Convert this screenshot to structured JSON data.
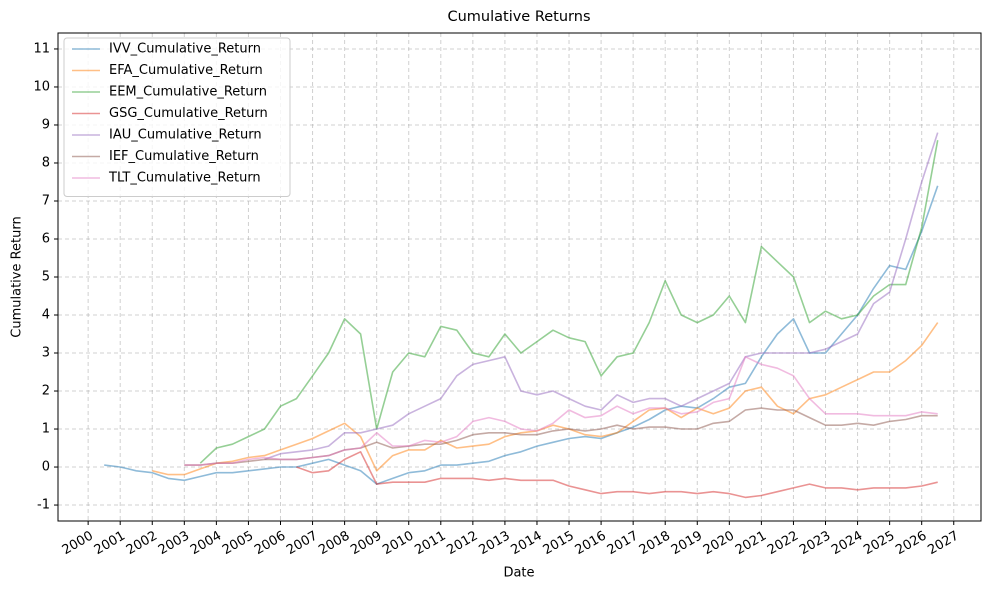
{
  "chart_data": {
    "type": "line",
    "title": "Cumulative Returns",
    "x_label": "Date",
    "y_label": "Cumulative Return",
    "x": [
      2000.5,
      2001,
      2001.5,
      2002,
      2002.5,
      2003,
      2003.5,
      2004,
      2004.5,
      2005,
      2005.5,
      2006,
      2006.5,
      2007,
      2007.5,
      2008,
      2008.5,
      2009,
      2009.5,
      2010,
      2010.5,
      2011,
      2011.5,
      2012,
      2012.5,
      2013,
      2013.5,
      2014,
      2014.5,
      2015,
      2015.5,
      2016,
      2016.5,
      2017,
      2017.5,
      2018,
      2018.5,
      2019,
      2019.5,
      2020,
      2020.5,
      2021,
      2021.5,
      2022,
      2022.5,
      2023,
      2023.5,
      2024,
      2024.5,
      2025,
      2025.5,
      2026,
      2026.5
    ],
    "xlim": [
      1999.06,
      2027.85
    ],
    "xticks": [
      2000,
      2001,
      2002,
      2003,
      2004,
      2005,
      2006,
      2007,
      2008,
      2009,
      2010,
      2011,
      2012,
      2013,
      2014,
      2015,
      2016,
      2017,
      2018,
      2019,
      2020,
      2021,
      2022,
      2023,
      2024,
      2025,
      2026,
      2027
    ],
    "ylim": [
      -1.42,
      11.42
    ],
    "yticks": [
      -1,
      0,
      1,
      2,
      3,
      4,
      5,
      6,
      7,
      8,
      9,
      10,
      11
    ],
    "grid": true,
    "legend": "upper-left",
    "series": [
      {
        "name": "IVV_Cumulative_Return",
        "color": "#1f77b4",
        "values": [
          0.05,
          0.0,
          -0.1,
          -0.15,
          -0.3,
          -0.35,
          -0.25,
          -0.15,
          -0.15,
          -0.1,
          -0.05,
          0.0,
          0.0,
          0.1,
          0.2,
          0.05,
          -0.1,
          -0.45,
          -0.3,
          -0.15,
          -0.1,
          0.05,
          0.05,
          0.1,
          0.15,
          0.3,
          0.4,
          0.55,
          0.65,
          0.75,
          0.8,
          0.75,
          0.9,
          1.05,
          1.25,
          1.5,
          1.6,
          1.55,
          1.8,
          2.1,
          2.2,
          2.9,
          3.5,
          3.9,
          3.0,
          3.0,
          3.5,
          4.0,
          4.7,
          5.3,
          5.2,
          6.2,
          7.4
        ]
      },
      {
        "name": "EFA_Cumulative_Return",
        "color": "#ff7f0e",
        "values": [
          null,
          null,
          null,
          -0.1,
          -0.2,
          -0.2,
          -0.05,
          0.1,
          0.15,
          0.25,
          0.3,
          0.45,
          0.6,
          0.75,
          0.95,
          1.15,
          0.8,
          -0.1,
          0.3,
          0.45,
          0.45,
          0.7,
          0.5,
          0.55,
          0.6,
          0.8,
          0.9,
          0.95,
          1.1,
          1.0,
          0.85,
          0.8,
          0.9,
          1.2,
          1.5,
          1.55,
          1.3,
          1.55,
          1.4,
          1.55,
          2.0,
          2.1,
          1.6,
          1.4,
          1.8,
          1.9,
          2.1,
          2.3,
          2.5,
          2.5,
          2.8,
          3.2,
          3.8
        ]
      },
      {
        "name": "EEM_Cumulative_Return",
        "color": "#2ca02c",
        "values": [
          null,
          null,
          null,
          null,
          null,
          null,
          0.1,
          0.5,
          0.6,
          0.8,
          1.0,
          1.6,
          1.8,
          2.4,
          3.0,
          3.9,
          3.5,
          1.0,
          2.5,
          3.0,
          2.9,
          3.7,
          3.6,
          3.0,
          2.9,
          3.5,
          3.0,
          3.3,
          3.6,
          3.4,
          3.3,
          2.4,
          2.9,
          3.0,
          3.8,
          4.9,
          4.0,
          3.8,
          4.0,
          4.5,
          3.8,
          5.8,
          5.4,
          5.0,
          3.8,
          4.1,
          3.9,
          4.0,
          4.5,
          4.8,
          4.8,
          6.3,
          8.6
        ]
      },
      {
        "name": "GSG_Cumulative_Return",
        "color": "#d62728",
        "values": [
          null,
          null,
          null,
          null,
          null,
          null,
          null,
          null,
          null,
          null,
          null,
          null,
          0.0,
          -0.15,
          -0.1,
          0.2,
          0.4,
          -0.45,
          -0.4,
          -0.4,
          -0.4,
          -0.3,
          -0.3,
          -0.3,
          -0.35,
          -0.3,
          -0.35,
          -0.35,
          -0.35,
          -0.5,
          -0.6,
          -0.7,
          -0.65,
          -0.65,
          -0.7,
          -0.65,
          -0.65,
          -0.7,
          -0.65,
          -0.7,
          -0.8,
          -0.75,
          -0.65,
          -0.55,
          -0.45,
          -0.55,
          -0.55,
          -0.6,
          -0.55,
          -0.55,
          -0.55,
          -0.5,
          -0.4
        ]
      },
      {
        "name": "IAU_Cumulative_Return",
        "color": "#9467bd",
        "values": [
          null,
          null,
          null,
          null,
          null,
          null,
          null,
          null,
          null,
          null,
          0.2,
          0.35,
          0.4,
          0.45,
          0.55,
          0.9,
          0.9,
          1.0,
          1.1,
          1.4,
          1.6,
          1.8,
          2.4,
          2.7,
          2.8,
          2.9,
          2.0,
          1.9,
          2.0,
          1.8,
          1.6,
          1.5,
          1.9,
          1.7,
          1.8,
          1.8,
          1.6,
          1.8,
          2.0,
          2.2,
          2.9,
          3.0,
          3.0,
          3.0,
          3.0,
          3.1,
          3.3,
          3.5,
          4.3,
          4.6,
          6.0,
          7.5,
          8.8
        ]
      },
      {
        "name": "IEF_Cumulative_Return",
        "color": "#8c564b",
        "values": [
          null,
          null,
          null,
          null,
          null,
          0.05,
          0.05,
          0.1,
          0.1,
          0.15,
          0.2,
          0.2,
          0.2,
          0.25,
          0.3,
          0.45,
          0.5,
          0.65,
          0.5,
          0.55,
          0.6,
          0.6,
          0.7,
          0.85,
          0.9,
          0.9,
          0.85,
          0.85,
          0.95,
          1.0,
          0.95,
          1.0,
          1.1,
          1.0,
          1.05,
          1.05,
          1.0,
          1.0,
          1.15,
          1.2,
          1.5,
          1.55,
          1.5,
          1.5,
          1.3,
          1.1,
          1.1,
          1.15,
          1.1,
          1.2,
          1.25,
          1.35,
          1.35
        ]
      },
      {
        "name": "TLT_Cumulative_Return",
        "color": "#e377c2",
        "values": [
          null,
          null,
          null,
          null,
          null,
          0.05,
          0.05,
          0.1,
          0.1,
          0.2,
          0.25,
          0.2,
          0.2,
          0.25,
          0.3,
          0.45,
          0.5,
          0.9,
          0.55,
          0.55,
          0.7,
          0.65,
          0.8,
          1.2,
          1.3,
          1.2,
          1.0,
          0.95,
          1.15,
          1.5,
          1.3,
          1.35,
          1.6,
          1.4,
          1.55,
          1.55,
          1.4,
          1.45,
          1.7,
          1.8,
          2.9,
          2.7,
          2.6,
          2.4,
          1.8,
          1.4,
          1.4,
          1.4,
          1.35,
          1.35,
          1.35,
          1.45,
          1.4
        ]
      }
    ]
  }
}
